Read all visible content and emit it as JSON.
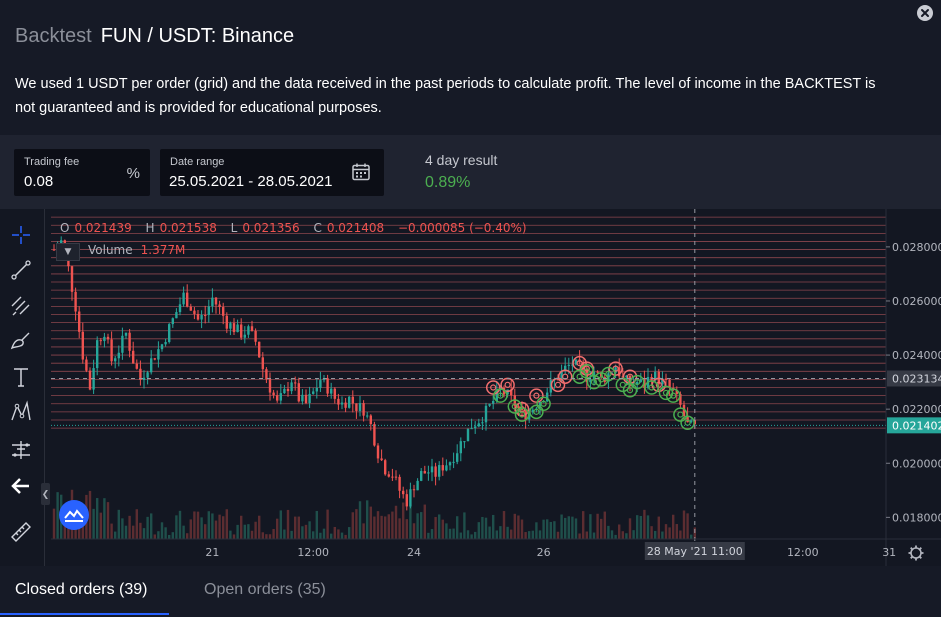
{
  "header": {
    "prefix": "Backtest",
    "pair": "FUN / USDT: Binance",
    "description": "We used 1 USDT per order (grid) and the data received in the past periods to calculate profit. The level of income in the BACKTEST is not guaranteed and is provided for educational purposes."
  },
  "params": {
    "fee_label": "Trading fee",
    "fee_value": "0.08",
    "fee_unit": "%",
    "range_label": "Date range",
    "range_value": "25.05.2021 - 28.05.2021",
    "result_label": "4 day result",
    "result_value": "0.89%"
  },
  "colors": {
    "up": "#26a69a",
    "down": "#ef5350",
    "profit": "#4caf50",
    "accent": "#2962ff"
  },
  "legend": {
    "o_label": "O",
    "o": "0.021439",
    "h_label": "H",
    "h": "0.021538",
    "l_label": "L",
    "l": "0.021356",
    "c_label": "C",
    "c": "0.021408",
    "change": "−0.000085 (−0.40%)",
    "volume_label": "Volume",
    "volume_value": "1.377M"
  },
  "toolbar": {
    "icons": [
      "crosshair-icon",
      "trend-line-icon",
      "fib-retracement-icon",
      "brush-icon",
      "text-icon",
      "pattern-icon",
      "measure-icon",
      "back-arrow-icon",
      "ruler-icon"
    ]
  },
  "chart_data": {
    "type": "candlestick",
    "title": "FUN / USDT: Binance",
    "ylim": [
      0.0172,
      0.0294
    ],
    "y_ticks": [
      {
        "value": 0.028,
        "label": "0.028000"
      },
      {
        "value": 0.026,
        "label": "0.026000"
      },
      {
        "value": 0.024,
        "label": "0.024000"
      },
      {
        "value": 0.022,
        "label": "0.022000"
      },
      {
        "value": 0.02,
        "label": "0.020000"
      },
      {
        "value": 0.018,
        "label": "0.018000"
      }
    ],
    "x_ticks": [
      {
        "t": 22,
        "label": "21"
      },
      {
        "t": 36,
        "label": "12:00"
      },
      {
        "t": 50,
        "label": "24"
      },
      {
        "t": 68,
        "label": "26"
      },
      {
        "t": 104,
        "label": "12:00"
      },
      {
        "t": 116,
        "label": "31"
      }
    ],
    "t_max": 123,
    "grid_levels": [
      0.0213,
      0.0216,
      0.0219,
      0.0222,
      0.0225,
      0.0228,
      0.0231,
      0.0234,
      0.0237,
      0.024,
      0.0243,
      0.0246,
      0.0249,
      0.0252,
      0.0255,
      0.0258,
      0.0261,
      0.0264,
      0.0267,
      0.027,
      0.0273,
      0.0276,
      0.0279,
      0.0282,
      0.0285,
      0.0288,
      0.0291
    ],
    "price_anchors": [
      [
        0,
        0.0279
      ],
      [
        1,
        0.0282
      ],
      [
        2,
        0.0272
      ],
      [
        3,
        0.0258
      ],
      [
        4,
        0.024
      ],
      [
        5,
        0.0228
      ],
      [
        6,
        0.0245
      ],
      [
        7,
        0.0249
      ],
      [
        8,
        0.0238
      ],
      [
        9,
        0.0242
      ],
      [
        10,
        0.0248
      ],
      [
        11,
        0.0238
      ],
      [
        12,
        0.0231
      ],
      [
        13,
        0.0236
      ],
      [
        14,
        0.024
      ],
      [
        15,
        0.0244
      ],
      [
        16,
        0.025
      ],
      [
        17,
        0.0256
      ],
      [
        18,
        0.0262
      ],
      [
        19,
        0.0258
      ],
      [
        20,
        0.0253
      ],
      [
        21,
        0.0255
      ],
      [
        22,
        0.0261
      ],
      [
        23,
        0.0257
      ],
      [
        24,
        0.0252
      ],
      [
        25,
        0.025
      ],
      [
        26,
        0.0248
      ],
      [
        27,
        0.0249
      ],
      [
        28,
        0.0245
      ],
      [
        29,
        0.0235
      ],
      [
        30,
        0.0228
      ],
      [
        31,
        0.0222
      ],
      [
        32,
        0.0226
      ],
      [
        33,
        0.0231
      ],
      [
        34,
        0.0224
      ],
      [
        35,
        0.0222
      ],
      [
        36,
        0.0226
      ],
      [
        37,
        0.0231
      ],
      [
        38,
        0.0228
      ],
      [
        39,
        0.0224
      ],
      [
        40,
        0.0222
      ],
      [
        41,
        0.0224
      ],
      [
        42,
        0.0221
      ],
      [
        43,
        0.022
      ],
      [
        44,
        0.0214
      ],
      [
        45,
        0.0204
      ],
      [
        46,
        0.0198
      ],
      [
        47,
        0.0196
      ],
      [
        48,
        0.019
      ],
      [
        49,
        0.0186
      ],
      [
        50,
        0.0192
      ],
      [
        51,
        0.0196
      ],
      [
        52,
        0.0197
      ],
      [
        53,
        0.0196
      ],
      [
        54,
        0.0199
      ],
      [
        55,
        0.0201
      ],
      [
        56,
        0.0205
      ],
      [
        57,
        0.021
      ],
      [
        58,
        0.0214
      ],
      [
        59,
        0.0216
      ],
      [
        60,
        0.0219
      ],
      [
        61,
        0.0223
      ],
      [
        62,
        0.0227
      ],
      [
        63,
        0.0225
      ],
      [
        64,
        0.0222
      ],
      [
        65,
        0.0218
      ],
      [
        66,
        0.0219
      ],
      [
        67,
        0.0222
      ],
      [
        68,
        0.0225
      ],
      [
        69,
        0.0229
      ],
      [
        70,
        0.0232
      ],
      [
        71,
        0.0235
      ],
      [
        72,
        0.0237
      ],
      [
        73,
        0.0235
      ],
      [
        74,
        0.0232
      ],
      [
        75,
        0.0234
      ],
      [
        76,
        0.0231
      ],
      [
        77,
        0.0233
      ],
      [
        78,
        0.0236
      ],
      [
        79,
        0.0231
      ],
      [
        80,
        0.0229
      ],
      [
        81,
        0.023
      ],
      [
        82,
        0.0229
      ],
      [
        83,
        0.0233
      ],
      [
        84,
        0.0231
      ],
      [
        85,
        0.0229
      ],
      [
        86,
        0.0226
      ],
      [
        87,
        0.0221
      ],
      [
        88,
        0.0214
      ],
      [
        89,
        0.0213
      ]
    ],
    "entry_markers": [
      {
        "t": 61,
        "p": 0.0228
      },
      {
        "t": 63,
        "p": 0.0229
      },
      {
        "t": 65,
        "p": 0.022
      },
      {
        "t": 67,
        "p": 0.0225
      },
      {
        "t": 70,
        "p": 0.0229
      },
      {
        "t": 71,
        "p": 0.0232
      },
      {
        "t": 73,
        "p": 0.0237
      },
      {
        "t": 74,
        "p": 0.0235
      },
      {
        "t": 78,
        "p": 0.0235
      },
      {
        "t": 80,
        "p": 0.0232
      },
      {
        "t": 84,
        "p": 0.0229
      }
    ],
    "exit_markers": [
      {
        "t": 62,
        "p": 0.0225
      },
      {
        "t": 64,
        "p": 0.0221
      },
      {
        "t": 65,
        "p": 0.0218
      },
      {
        "t": 67,
        "p": 0.0219
      },
      {
        "t": 68,
        "p": 0.0222
      },
      {
        "t": 73,
        "p": 0.0232
      },
      {
        "t": 74,
        "p": 0.0234
      },
      {
        "t": 75,
        "p": 0.023
      },
      {
        "t": 76,
        "p": 0.0231
      },
      {
        "t": 77,
        "p": 0.0233
      },
      {
        "t": 79,
        "p": 0.0229
      },
      {
        "t": 80,
        "p": 0.0227
      },
      {
        "t": 81,
        "p": 0.023
      },
      {
        "t": 83,
        "p": 0.0228
      },
      {
        "t": 85,
        "p": 0.0226
      },
      {
        "t": 86,
        "p": 0.0225
      },
      {
        "t": 87,
        "p": 0.0218
      },
      {
        "t": 88,
        "p": 0.0215
      }
    ],
    "crosshair": {
      "t": 89,
      "p": 0.023134,
      "price_label": "0.023134",
      "time_label": "28 May '21   11:00"
    },
    "last_price": {
      "p": 0.021402,
      "label": "0.021402"
    }
  },
  "tabs": {
    "closed": "Closed orders (39)",
    "open": "Open orders (35)"
  }
}
